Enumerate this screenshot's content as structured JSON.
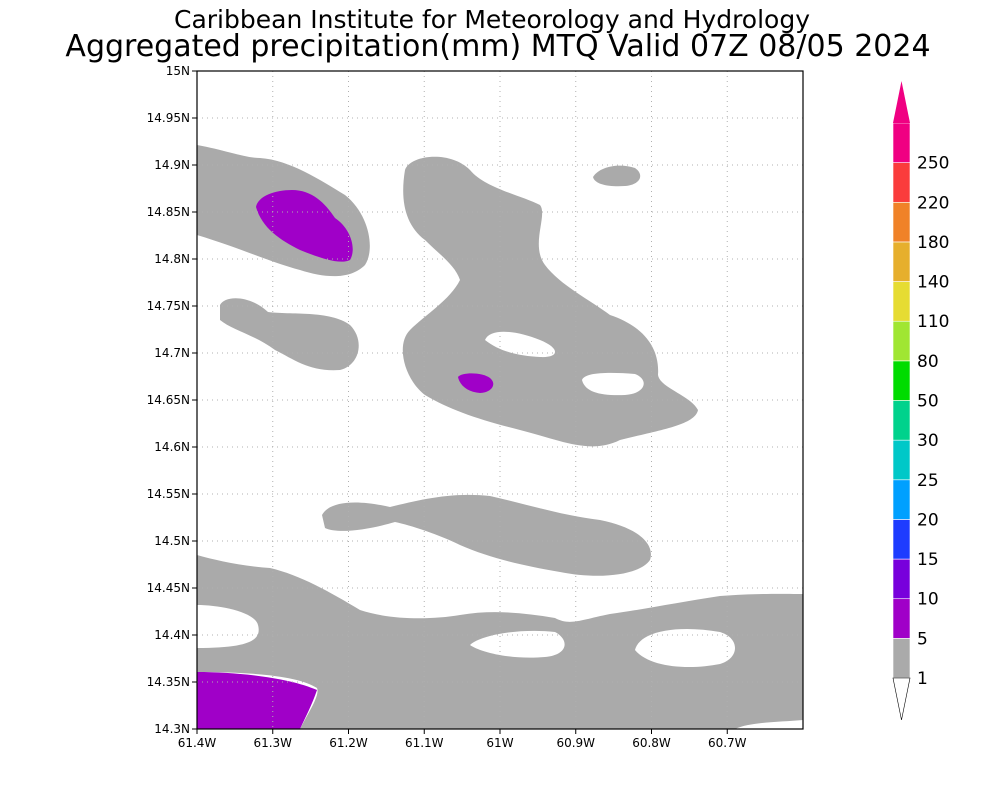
{
  "title": {
    "line1": "Caribbean Institute for Meteorology and Hydrology",
    "line2": "Aggregated precipitation(mm) MTQ Valid 07Z 08/05 2024"
  },
  "map": {
    "lon_range": [
      -61.4,
      -60.6
    ],
    "lat_range": [
      14.3,
      15.0
    ],
    "x_ticks": [
      {
        "value": -61.4,
        "label": "61.4W"
      },
      {
        "value": -61.3,
        "label": "61.3W"
      },
      {
        "value": -61.2,
        "label": "61.2W"
      },
      {
        "value": -61.1,
        "label": "61.1W"
      },
      {
        "value": -61.0,
        "label": "61W"
      },
      {
        "value": -60.9,
        "label": "60.9W"
      },
      {
        "value": -60.8,
        "label": "60.8W"
      },
      {
        "value": -60.7,
        "label": "60.7W"
      }
    ],
    "y_ticks": [
      {
        "value": 14.3,
        "label": "14.3N"
      },
      {
        "value": 14.35,
        "label": "14.35N"
      },
      {
        "value": 14.4,
        "label": "14.4N"
      },
      {
        "value": 14.45,
        "label": "14.45N"
      },
      {
        "value": 14.5,
        "label": "14.5N"
      },
      {
        "value": 14.55,
        "label": "14.55N"
      },
      {
        "value": 14.6,
        "label": "14.6N"
      },
      {
        "value": 14.65,
        "label": "14.65N"
      },
      {
        "value": 14.7,
        "label": "14.7N"
      },
      {
        "value": 14.75,
        "label": "14.75N"
      },
      {
        "value": 14.8,
        "label": "14.8N"
      },
      {
        "value": 14.85,
        "label": "14.85N"
      },
      {
        "value": 14.9,
        "label": "14.9N"
      },
      {
        "value": 14.95,
        "label": "14.95N"
      },
      {
        "value": 15.0,
        "label": "15N"
      }
    ],
    "grid": true
  },
  "colorbar": {
    "levels": [
      {
        "label": "1",
        "color": "#aaaaaa"
      },
      {
        "label": "5",
        "color": "#a000c8"
      },
      {
        "label": "10",
        "color": "#7800dc"
      },
      {
        "label": "15",
        "color": "#1e3cff"
      },
      {
        "label": "20",
        "color": "#00a0ff"
      },
      {
        "label": "25",
        "color": "#00c8c8"
      },
      {
        "label": "30",
        "color": "#00d28c"
      },
      {
        "label": "50",
        "color": "#00dc00"
      },
      {
        "label": "80",
        "color": "#a0e632"
      },
      {
        "label": "110",
        "color": "#e6dc32"
      },
      {
        "label": "140",
        "color": "#e6af2d"
      },
      {
        "label": "180",
        "color": "#f08228"
      },
      {
        "label": "220",
        "color": "#fa3c3c"
      },
      {
        "label": "250",
        "color": "#f00082"
      }
    ],
    "under_color": "#ffffff",
    "over_color": "#f00082"
  }
}
